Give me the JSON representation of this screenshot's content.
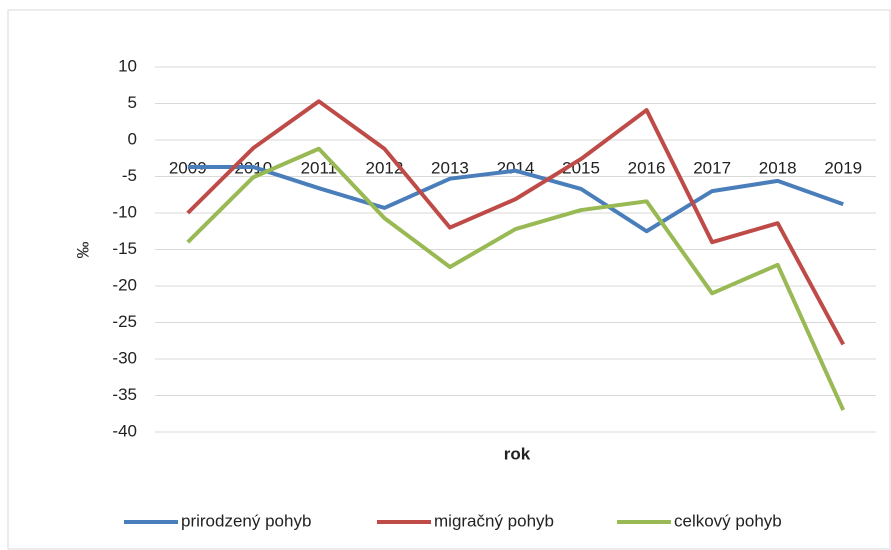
{
  "chart_data": {
    "type": "line",
    "x_label": "rok",
    "y_label": "‰",
    "categories": [
      "2009",
      "2010",
      "2011",
      "2012",
      "2013",
      "2014",
      "2015",
      "2016",
      "2017",
      "2018",
      "2019"
    ],
    "series": [
      {
        "name": "prirodzený pohyb",
        "color": "#4a7ebb",
        "values": [
          -3.7,
          -3.7,
          -6.6,
          -9.3,
          -5.3,
          -4.2,
          -6.7,
          -12.5,
          -7.0,
          -5.6,
          -8.8
        ]
      },
      {
        "name": "migračný pohyb",
        "color": "#be4b48",
        "values": [
          -10,
          -1.1,
          5.3,
          -1.2,
          -12,
          -8.1,
          -2.6,
          4.1,
          -14,
          -11.4,
          -28
        ]
      },
      {
        "name": "celkový pohyb",
        "color": "#98b954",
        "values": [
          -14,
          -5.1,
          -1.2,
          -10.7,
          -17.4,
          -12.2,
          -9.6,
          -8.4,
          -21,
          -17.1,
          -37
        ]
      }
    ],
    "ylim": [
      -40,
      10
    ],
    "yticks": [
      -40,
      -35,
      -30,
      -25,
      -20,
      -15,
      -10,
      -5,
      0,
      5,
      10
    ],
    "grid": true,
    "legend": "bottom"
  }
}
